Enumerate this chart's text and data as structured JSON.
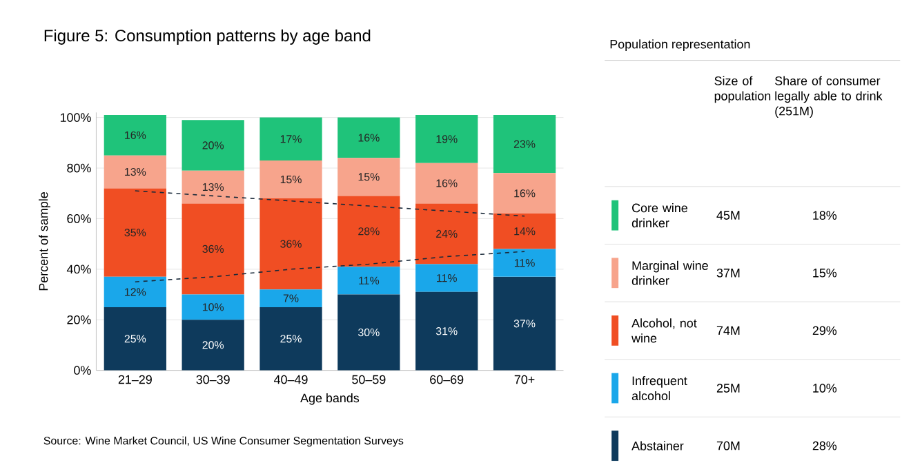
{
  "chart_data": [
    {
      "type": "bar",
      "title": "Figure 5: Consumption patterns by age band",
      "xlabel": "Age bands",
      "ylabel": "Percent of sample",
      "stacked": true,
      "legend": "right",
      "grid": "y",
      "categories": [
        "21–29",
        "30–39",
        "40–49",
        "50–59",
        "60–69",
        "70+"
      ],
      "ylim": [
        0,
        102
      ],
      "yticks": [
        {
          "value": 0,
          "label": "0%"
        },
        {
          "value": 20,
          "label": "20%"
        },
        {
          "value": 40,
          "label": "40%"
        },
        {
          "value": 60,
          "label": "60%"
        },
        {
          "value": 80,
          "label": "80%"
        },
        {
          "value": 100,
          "label": "100%"
        }
      ],
      "series": [
        {
          "name": "Abstainer",
          "color": "#0e3a5c",
          "values": [
            25,
            20,
            25,
            30,
            31,
            37
          ],
          "value_labels": [
            "25%",
            "20%",
            "25%",
            "30%",
            "31%",
            "37%"
          ]
        },
        {
          "name": "Infrequent alcohol",
          "color": "#1aa7ea",
          "values": [
            12,
            10,
            7,
            11,
            11,
            11
          ],
          "value_labels": [
            "12%",
            "10%",
            "7%",
            "11%",
            "11%",
            "11%"
          ]
        },
        {
          "name": "Alcohol, not wine",
          "color": "#f04e23",
          "values": [
            35,
            36,
            36,
            28,
            24,
            14
          ],
          "value_labels": [
            "35%",
            "36%",
            "36%",
            "28%",
            "24%",
            "14%"
          ]
        },
        {
          "name": "Marginal wine drinker",
          "color": "#f7a48c",
          "values": [
            13,
            13,
            15,
            15,
            16,
            16
          ],
          "value_labels": [
            "13%",
            "13%",
            "15%",
            "15%",
            "16%",
            "16%"
          ]
        },
        {
          "name": "Core wine drinker",
          "color": "#1fc37a",
          "values": [
            16,
            20,
            17,
            16,
            19,
            23
          ],
          "value_labels": [
            "16%",
            "20%",
            "17%",
            "16%",
            "19%",
            "23%"
          ]
        },
        {
          "type": "line",
          "color": "#1a2a3a",
          "line_style": "dashed",
          "values": [
            71,
            69,
            67,
            65,
            63,
            61
          ]
        },
        {
          "type": "line",
          "color": "#1a2a3a",
          "line_style": "dashed",
          "values": [
            35,
            37,
            40,
            42,
            45,
            47
          ]
        }
      ],
      "annotations": [
        "Source: Wine Market Council, US Wine Consumer Segmentation Surveys"
      ]
    },
    {
      "type": "other",
      "title": "Population representation",
      "annotations": [
        "Size of population",
        "Share of consumer legally able to drink (251M)",
        "45M",
        "18%",
        "37M",
        "15%",
        "74M",
        "29%",
        "25M",
        "10%",
        "70M",
        "28%"
      ]
    }
  ]
}
